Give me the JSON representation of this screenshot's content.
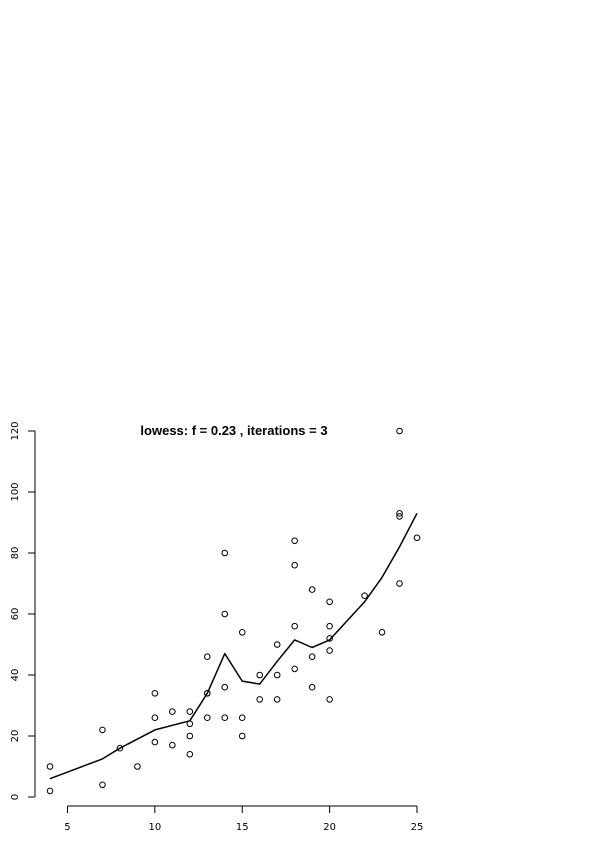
{
  "chart_data": {
    "type": "scatter",
    "title": "lowess: f = 0.23 , iterations = 3",
    "xlabel": "",
    "ylabel": "",
    "xlim": [
      4,
      25
    ],
    "ylim": [
      0,
      120
    ],
    "x_ticks": [
      5,
      10,
      15,
      20,
      25
    ],
    "y_ticks": [
      0,
      20,
      40,
      60,
      80,
      100,
      120
    ],
    "x_tick_labels": [
      "5",
      "10",
      "15",
      "20",
      "25"
    ],
    "y_tick_labels": [
      "0",
      "20",
      "40",
      "60",
      "80",
      "100",
      "120"
    ],
    "grid": false,
    "points": [
      {
        "x": 4,
        "y": 2
      },
      {
        "x": 4,
        "y": 10
      },
      {
        "x": 7,
        "y": 4
      },
      {
        "x": 7,
        "y": 22
      },
      {
        "x": 8,
        "y": 16
      },
      {
        "x": 9,
        "y": 10
      },
      {
        "x": 10,
        "y": 18
      },
      {
        "x": 10,
        "y": 26
      },
      {
        "x": 10,
        "y": 34
      },
      {
        "x": 11,
        "y": 17
      },
      {
        "x": 11,
        "y": 28
      },
      {
        "x": 12,
        "y": 14
      },
      {
        "x": 12,
        "y": 20
      },
      {
        "x": 12,
        "y": 24
      },
      {
        "x": 12,
        "y": 28
      },
      {
        "x": 13,
        "y": 26
      },
      {
        "x": 13,
        "y": 34
      },
      {
        "x": 13,
        "y": 34
      },
      {
        "x": 13,
        "y": 46
      },
      {
        "x": 14,
        "y": 26
      },
      {
        "x": 14,
        "y": 36
      },
      {
        "x": 14,
        "y": 60
      },
      {
        "x": 14,
        "y": 80
      },
      {
        "x": 15,
        "y": 20
      },
      {
        "x": 15,
        "y": 26
      },
      {
        "x": 15,
        "y": 54
      },
      {
        "x": 16,
        "y": 32
      },
      {
        "x": 16,
        "y": 40
      },
      {
        "x": 17,
        "y": 32
      },
      {
        "x": 17,
        "y": 40
      },
      {
        "x": 17,
        "y": 50
      },
      {
        "x": 18,
        "y": 42
      },
      {
        "x": 18,
        "y": 56
      },
      {
        "x": 18,
        "y": 76
      },
      {
        "x": 18,
        "y": 84
      },
      {
        "x": 19,
        "y": 36
      },
      {
        "x": 19,
        "y": 46
      },
      {
        "x": 19,
        "y": 68
      },
      {
        "x": 20,
        "y": 32
      },
      {
        "x": 20,
        "y": 48
      },
      {
        "x": 20,
        "y": 52
      },
      {
        "x": 20,
        "y": 56
      },
      {
        "x": 20,
        "y": 64
      },
      {
        "x": 22,
        "y": 66
      },
      {
        "x": 23,
        "y": 54
      },
      {
        "x": 24,
        "y": 70
      },
      {
        "x": 24,
        "y": 92
      },
      {
        "x": 24,
        "y": 93
      },
      {
        "x": 24,
        "y": 120
      },
      {
        "x": 25,
        "y": 85
      }
    ],
    "smooth_line": [
      {
        "x": 4,
        "y": 6
      },
      {
        "x": 7,
        "y": 12.5
      },
      {
        "x": 8,
        "y": 16
      },
      {
        "x": 10,
        "y": 22
      },
      {
        "x": 12,
        "y": 25
      },
      {
        "x": 13,
        "y": 34
      },
      {
        "x": 14,
        "y": 47
      },
      {
        "x": 15,
        "y": 38
      },
      {
        "x": 16,
        "y": 37
      },
      {
        "x": 17,
        "y": 44.5
      },
      {
        "x": 18,
        "y": 51.5
      },
      {
        "x": 19,
        "y": 49
      },
      {
        "x": 20,
        "y": 51.5
      },
      {
        "x": 22,
        "y": 64
      },
      {
        "x": 23,
        "y": 72
      },
      {
        "x": 24,
        "y": 82
      },
      {
        "x": 25,
        "y": 93
      }
    ]
  }
}
